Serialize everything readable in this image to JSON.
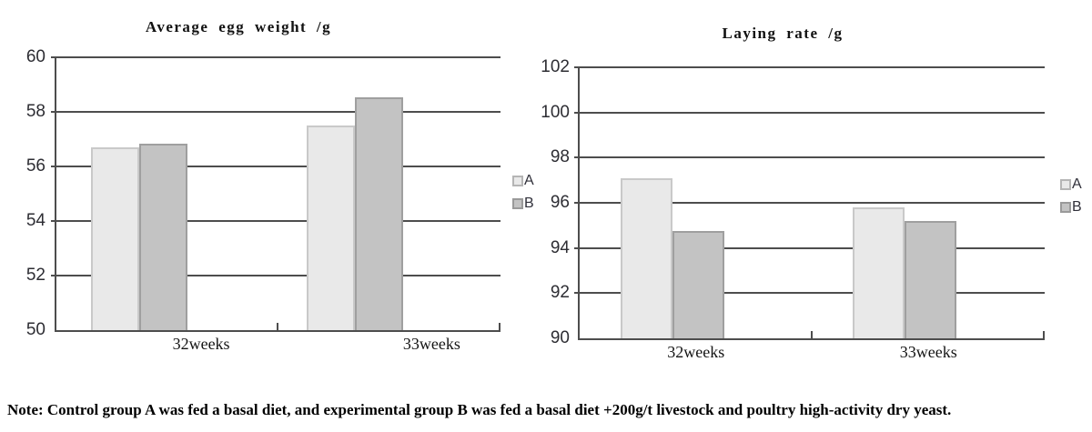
{
  "note": "Note: Control group A was fed a basal diet, and experimental group B was fed a basal diet +200g/t livestock and poultry high-activity dry yeast.",
  "colors": {
    "series_a_fill": "#e9e9e9",
    "series_a_border": "#c9c9c9",
    "series_b_fill": "#c3c3c3",
    "series_b_border": "#9f9f9f",
    "gridline": "#4d4d4d",
    "text": "#111111"
  },
  "chart_data": [
    {
      "type": "bar",
      "title": "Average egg weight /g",
      "categories": [
        "32weeks",
        "33weeks"
      ],
      "series": [
        {
          "name": "A",
          "values": [
            56.7,
            57.5
          ]
        },
        {
          "name": "B",
          "values": [
            56.85,
            58.55
          ]
        }
      ],
      "ylim": [
        50,
        60
      ],
      "yticks": [
        50,
        52,
        54,
        56,
        58,
        60
      ],
      "xlabel": "",
      "ylabel": "",
      "grid": true,
      "legend_position": "right",
      "legend": [
        "A",
        "B"
      ]
    },
    {
      "type": "bar",
      "title": "Laying rate /g",
      "categories": [
        "32weeks",
        "33weeks"
      ],
      "series": [
        {
          "name": "A",
          "values": [
            97.1,
            95.8
          ]
        },
        {
          "name": "B",
          "values": [
            94.75,
            95.2
          ]
        }
      ],
      "ylim": [
        90,
        102
      ],
      "yticks": [
        90,
        92,
        94,
        96,
        98,
        100,
        102
      ],
      "xlabel": "",
      "ylabel": "",
      "grid": true,
      "legend_position": "right",
      "legend": [
        "A",
        "B"
      ]
    }
  ]
}
